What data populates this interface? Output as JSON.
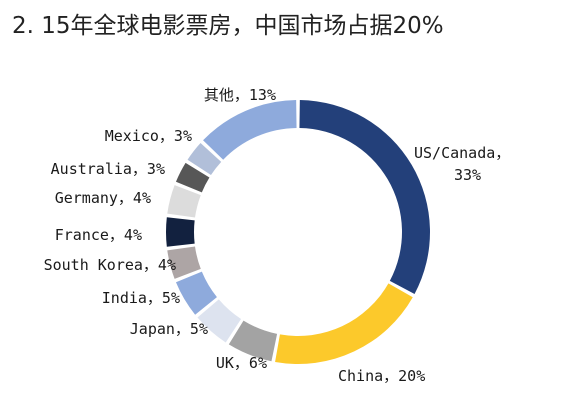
{
  "chart_data": {
    "type": "pie",
    "title": "2. 15年全球电影票房，中国市场占据20%",
    "slices": [
      {
        "label": "US/Canada",
        "value": 33,
        "color": "#23407a"
      },
      {
        "label": "China",
        "value": 20,
        "color": "#fcc92b"
      },
      {
        "label": "UK",
        "value": 6,
        "color": "#a3a3a3"
      },
      {
        "label": "Japan",
        "value": 5,
        "color": "#dde3ef"
      },
      {
        "label": "India",
        "value": 5,
        "color": "#8eaadc"
      },
      {
        "label": "South Korea",
        "value": 4,
        "color": "#ada5a5"
      },
      {
        "label": "France",
        "value": 4,
        "color": "#12213f"
      },
      {
        "label": "Germany",
        "value": 4,
        "color": "#dcdcdc"
      },
      {
        "label": "Australia",
        "value": 3,
        "color": "#575757"
      },
      {
        "label": "Mexico",
        "value": 3,
        "color": "#b1bfd9"
      },
      {
        "label": "其他",
        "value": 13,
        "color": "#8eaadc"
      }
    ],
    "legend": "none"
  }
}
